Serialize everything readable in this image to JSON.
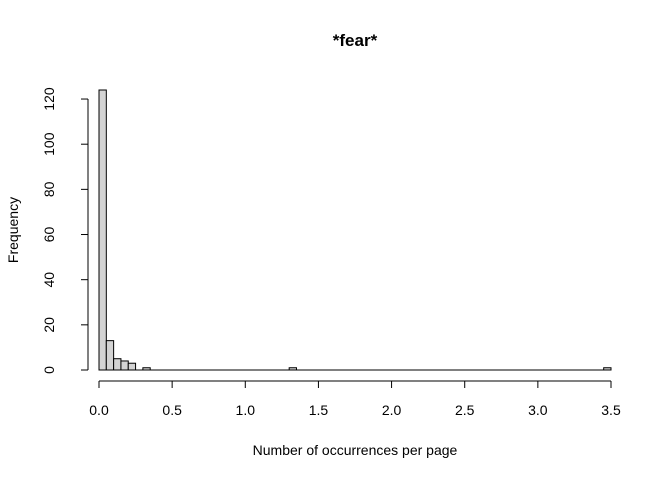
{
  "chart_data": {
    "type": "bar",
    "title": "*fear*",
    "xlabel": "Number of occurrences per page",
    "ylabel": "Frequency",
    "bin_width": 0.05,
    "bins": [
      {
        "x0": 0.0,
        "x1": 0.05,
        "count": 124
      },
      {
        "x0": 0.05,
        "x1": 0.1,
        "count": 13
      },
      {
        "x0": 0.1,
        "x1": 0.15,
        "count": 5
      },
      {
        "x0": 0.15,
        "x1": 0.2,
        "count": 4
      },
      {
        "x0": 0.2,
        "x1": 0.25,
        "count": 3
      },
      {
        "x0": 0.25,
        "x1": 0.3,
        "count": 0
      },
      {
        "x0": 0.3,
        "x1": 0.35,
        "count": 1
      },
      {
        "x0": 1.3,
        "x1": 1.35,
        "count": 1
      },
      {
        "x0": 3.45,
        "x1": 3.5,
        "count": 1
      }
    ],
    "baseline_range": [
      0,
      3.5
    ],
    "xlim": [
      0,
      3.5
    ],
    "ylim": [
      0,
      124
    ],
    "x_ticks": [
      0.0,
      0.5,
      1.0,
      1.5,
      2.0,
      2.5,
      3.0,
      3.5
    ],
    "x_tick_labels": [
      "0.0",
      "0.5",
      "1.0",
      "1.5",
      "2.0",
      "2.5",
      "3.0",
      "3.5"
    ],
    "y_ticks": [
      0,
      20,
      40,
      60,
      80,
      100,
      120
    ],
    "y_tick_labels": [
      "0",
      "20",
      "40",
      "60",
      "80",
      "100",
      "120"
    ],
    "grid": false,
    "legend": "none"
  }
}
